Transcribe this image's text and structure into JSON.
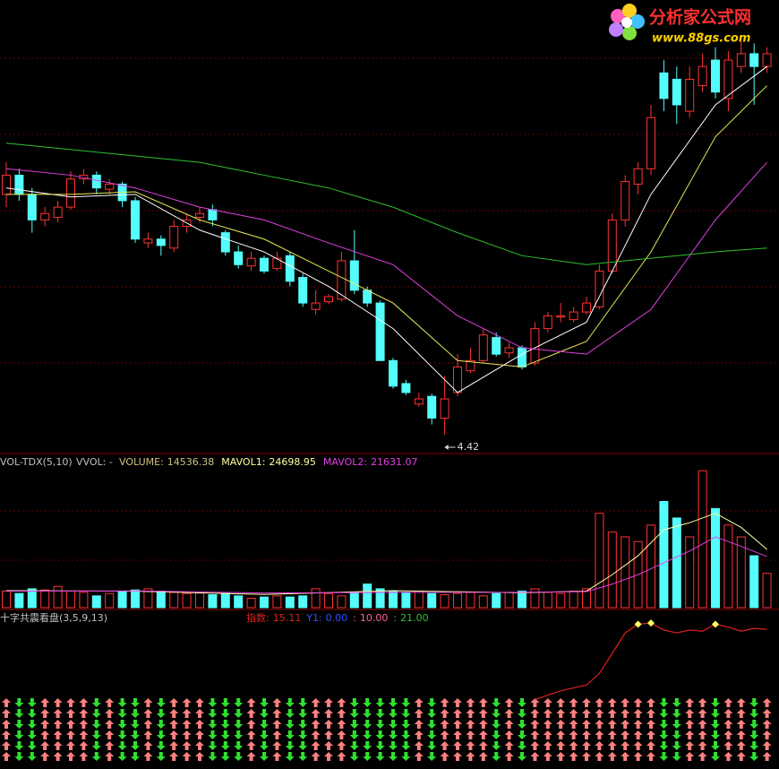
{
  "chart_data": [
    {
      "type": "candlestick",
      "open": [
        6.3,
        6.45,
        6.3,
        6.1,
        6.12,
        6.2,
        6.42,
        6.45,
        6.34,
        6.38,
        6.25,
        5.92,
        5.95,
        5.88,
        6.05,
        6.12,
        6.18,
        6.0,
        5.85,
        5.74,
        5.8,
        5.72,
        5.82,
        5.65,
        5.4,
        5.46,
        5.48,
        5.78,
        5.55,
        5.45,
        5.0,
        4.82,
        4.66,
        4.72,
        4.55,
        4.75,
        4.92,
        5.0,
        5.18,
        5.06,
        5.1,
        4.98,
        5.25,
        5.34,
        5.32,
        5.38,
        5.42,
        5.7,
        6.1,
        6.38,
        6.5,
        7.25,
        7.2,
        6.95,
        7.15,
        7.35,
        7.05,
        7.3,
        7.4,
        7.3
      ],
      "high": [
        6.55,
        6.5,
        6.35,
        6.2,
        6.25,
        6.48,
        6.5,
        6.48,
        6.42,
        6.4,
        6.28,
        6.0,
        5.98,
        6.1,
        6.15,
        6.2,
        6.22,
        6.02,
        5.9,
        5.85,
        5.82,
        5.85,
        5.85,
        5.68,
        5.55,
        5.52,
        5.85,
        6.02,
        5.58,
        5.47,
        5.02,
        4.85,
        4.75,
        4.74,
        4.88,
        5.05,
        5.1,
        5.25,
        5.22,
        5.14,
        5.12,
        5.3,
        5.38,
        5.45,
        5.42,
        5.5,
        5.75,
        6.15,
        6.45,
        6.55,
        7.0,
        7.35,
        7.3,
        7.3,
        7.4,
        7.45,
        7.42,
        7.5,
        7.48,
        7.45
      ],
      "low": [
        6.2,
        6.25,
        6.0,
        6.05,
        6.08,
        6.18,
        6.38,
        6.3,
        6.3,
        6.2,
        5.92,
        5.88,
        5.82,
        5.85,
        6.0,
        6.08,
        6.05,
        5.82,
        5.72,
        5.7,
        5.68,
        5.7,
        5.58,
        5.42,
        5.36,
        5.44,
        5.46,
        5.52,
        5.42,
        5.0,
        4.78,
        4.73,
        4.64,
        4.5,
        4.42,
        4.72,
        4.9,
        4.98,
        5.03,
        5.02,
        4.93,
        4.96,
        5.22,
        5.3,
        5.3,
        5.36,
        5.4,
        5.68,
        6.05,
        6.3,
        6.45,
        6.95,
        6.85,
        6.9,
        7.1,
        7.05,
        6.95,
        7.25,
        7.0,
        7.25
      ],
      "close": [
        6.45,
        6.3,
        6.1,
        6.15,
        6.2,
        6.42,
        6.45,
        6.35,
        6.38,
        6.25,
        5.95,
        5.95,
        5.9,
        6.05,
        6.1,
        6.15,
        6.1,
        5.85,
        5.75,
        5.8,
        5.7,
        5.8,
        5.62,
        5.45,
        5.45,
        5.5,
        5.78,
        5.55,
        5.45,
        5.0,
        4.8,
        4.75,
        4.7,
        4.55,
        4.7,
        4.95,
        5.0,
        5.2,
        5.05,
        5.1,
        4.95,
        5.25,
        5.35,
        5.35,
        5.38,
        5.45,
        5.7,
        6.1,
        6.4,
        6.5,
        6.9,
        7.05,
        7.0,
        7.2,
        7.3,
        7.1,
        7.35,
        7.4,
        7.3,
        7.4
      ],
      "up_color": "#ff3232",
      "down_color": "#54fcfc",
      "ylim": [
        4.28,
        7.82
      ],
      "lines": [
        {
          "color": "#ffffff",
          "x": [
            0,
            5,
            10,
            15,
            20,
            25,
            30,
            35,
            40,
            45,
            50,
            55,
            59
          ],
          "values": [
            6.35,
            6.28,
            6.3,
            6.02,
            5.85,
            5.58,
            5.25,
            4.75,
            5.05,
            5.3,
            6.3,
            7.0,
            7.3
          ]
        },
        {
          "color": "#e8e85a",
          "x": [
            0,
            5,
            10,
            15,
            20,
            25,
            30,
            35,
            40,
            45,
            50,
            55,
            59
          ],
          "values": [
            6.3,
            6.3,
            6.32,
            6.1,
            5.95,
            5.7,
            5.45,
            5.0,
            4.95,
            5.15,
            5.85,
            6.75,
            7.15
          ]
        },
        {
          "color": "#e040e0",
          "x": [
            0,
            5,
            10,
            15,
            20,
            25,
            30,
            35,
            40,
            45,
            50,
            55,
            59
          ],
          "values": [
            6.5,
            6.45,
            6.35,
            6.2,
            6.1,
            5.92,
            5.75,
            5.35,
            5.1,
            5.05,
            5.4,
            6.1,
            6.55
          ]
        },
        {
          "color": "#30c030",
          "x": [
            0,
            5,
            10,
            15,
            20,
            25,
            30,
            35,
            40,
            45,
            50,
            55,
            59
          ],
          "values": [
            6.7,
            6.65,
            6.6,
            6.55,
            6.45,
            6.35,
            6.2,
            6.0,
            5.82,
            5.75,
            5.8,
            5.85,
            5.88
          ]
        }
      ],
      "watermark": {
        "title": "分析家公式网",
        "url": "www.88gs.com"
      }
    },
    {
      "type": "volume",
      "title": "VOL-TDX(5,10)",
      "subtitle": "VVOL: -",
      "ylim": [
        0,
        60000
      ],
      "series": [
        {
          "name": "VOLUME:",
          "color": "#d0c080",
          "values": [
            7000,
            6000,
            8000,
            7500,
            9000,
            7000,
            6500,
            5000,
            6000,
            7000,
            7500,
            8000,
            7000,
            6500,
            6000,
            6200,
            5500,
            6000,
            5000,
            4000,
            4500,
            5000,
            4500,
            5000,
            8000,
            6000,
            5000,
            6500,
            10000,
            8000,
            7000,
            6500,
            7000,
            6000,
            5500,
            6000,
            6500,
            5000,
            6000,
            6500,
            7000,
            8000,
            6500,
            6000,
            7000,
            8000,
            40000,
            32000,
            30000,
            28000,
            35000,
            45000,
            38000,
            30000,
            58000,
            42000,
            35000,
            30000,
            22000,
            14536.38
          ]
        },
        {
          "name": "MAVOL1:",
          "color": "#ffffa0",
          "x": [
            0,
            10,
            20,
            30,
            40,
            45,
            47,
            49,
            51,
            53,
            55,
            57,
            59
          ],
          "values": [
            7200,
            7000,
            5600,
            7200,
            6300,
            7000,
            14000,
            22000,
            33000,
            36000,
            40000,
            34000,
            24698.95
          ]
        },
        {
          "name": "MAVOL2:",
          "color": "#e040e0",
          "x": [
            0,
            10,
            20,
            30,
            40,
            45,
            47,
            49,
            51,
            53,
            55,
            57,
            59
          ],
          "values": [
            7000,
            7100,
            6200,
            6500,
            6500,
            6800,
            10000,
            14000,
            19000,
            24000,
            30000,
            26000,
            21631.07
          ]
        }
      ]
    },
    {
      "type": "indicator",
      "title": "十字共震看盘(3,5,9,13)",
      "ylim": [
        -9,
        17
      ],
      "series": [
        {
          "name": "指数:",
          "color": "#e02020",
          "x": [
            41,
            43,
            45,
            46,
            47,
            48,
            49,
            50,
            51,
            52,
            53,
            54,
            55,
            56,
            57,
            58,
            59
          ],
          "values": [
            3.0,
            4.5,
            5.5,
            7.5,
            11.0,
            14.5,
            16.0,
            16.2,
            15.0,
            14.5,
            15.0,
            14.8,
            16.0,
            15.5,
            14.8,
            15.3,
            15.11
          ]
        },
        {
          "name": "Y1:",
          "color": "#3050ff",
          "label": "0.00"
        },
        {
          "name": ":",
          "color": "#ff60a0",
          "label": "10.00"
        },
        {
          "name": ":",
          "color": "#30c030",
          "label": "21.00"
        }
      ],
      "markers": {
        "color": "#ffff60",
        "x": [
          49,
          50,
          55
        ],
        "values": [
          16.0,
          16.2,
          16.0
        ]
      }
    }
  ]
}
